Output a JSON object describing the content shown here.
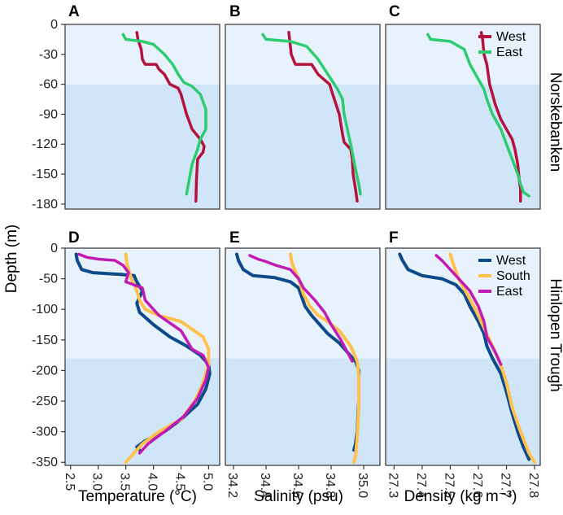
{
  "figure": {
    "ylabel": "Depth (m)",
    "xlabels": [
      "Temperature (°C)",
      "Salinity (psu)",
      "Density (kg m⁻³)"
    ],
    "row_labels": [
      "Norskebanken",
      "Hinlopen Trough"
    ],
    "panel_letters": [
      "A",
      "B",
      "C",
      "D",
      "E",
      "F"
    ],
    "colors": {
      "plot_bg_light": "#e8f2fc",
      "plot_bg_dark": "#d0e6f8",
      "West_top": "#b5123e",
      "East_top": "#2ecc71",
      "West_bottom": "#0d4a8a",
      "South_bottom": "#ffc04d",
      "East_bottom": "#c21bb5"
    }
  },
  "chart_data": [
    {
      "panel": "A",
      "type": "line",
      "xlabel": "",
      "ylabel": "Depth (m)",
      "xlim": [
        2.4,
        5.2
      ],
      "ylim": [
        -185,
        0
      ],
      "shade_below": -60,
      "yticks": [
        0,
        -30,
        -60,
        -90,
        -120,
        -150,
        -180
      ],
      "yticklabels": [
        "0",
        "-30",
        "-60",
        "-90",
        "-120",
        "-150",
        "-180"
      ],
      "xticks": [],
      "xticklabels": [],
      "legend": null,
      "series": [
        {
          "name": "West",
          "color": "#b5123e",
          "width": 3.5,
          "x": [
            3.7,
            3.72,
            3.78,
            3.8,
            3.85,
            4.05,
            4.1,
            4.2,
            4.25,
            4.3,
            4.45,
            4.5,
            4.55,
            4.6,
            4.7,
            4.85,
            4.92,
            4.9,
            4.8,
            4.78,
            4.77
          ],
          "y": [
            -8,
            -15,
            -25,
            -35,
            -40,
            -40,
            -45,
            -50,
            -55,
            -60,
            -64,
            -70,
            -80,
            -90,
            -105,
            -115,
            -122,
            -128,
            -135,
            -155,
            -177
          ]
        },
        {
          "name": "East",
          "color": "#2ecc71",
          "width": 3.5,
          "x": [
            3.45,
            3.5,
            3.8,
            4.0,
            4.2,
            4.35,
            4.45,
            4.55,
            4.7,
            4.85,
            4.95,
            4.95,
            4.85,
            4.8,
            4.7,
            4.65,
            4.6
          ],
          "y": [
            -10,
            -15,
            -17,
            -20,
            -30,
            -40,
            -50,
            -58,
            -62,
            -70,
            -85,
            -105,
            -115,
            -125,
            -140,
            -155,
            -170
          ]
        }
      ]
    },
    {
      "panel": "B",
      "type": "line",
      "xlabel": "",
      "ylabel": "",
      "xlim": [
        34.15,
        35.1
      ],
      "ylim": [
        -185,
        0
      ],
      "shade_below": -60,
      "yticks": [],
      "yticklabels": [],
      "xticks": [],
      "xticklabels": [],
      "legend": null,
      "series": [
        {
          "name": "West",
          "color": "#b5123e",
          "width": 3.5,
          "x": [
            34.54,
            34.545,
            34.555,
            34.58,
            34.68,
            34.72,
            34.79,
            34.81,
            34.83,
            34.85,
            34.86,
            34.87,
            34.88,
            34.92,
            34.93,
            34.935,
            34.95,
            34.96
          ],
          "y": [
            -8,
            -15,
            -30,
            -40,
            -40,
            -50,
            -60,
            -70,
            -80,
            -90,
            -100,
            -110,
            -118,
            -125,
            -135,
            -150,
            -165,
            -177
          ]
        },
        {
          "name": "East",
          "color": "#2ecc71",
          "width": 3.5,
          "x": [
            34.38,
            34.4,
            34.55,
            34.65,
            34.72,
            34.8,
            34.84,
            34.87,
            34.88,
            34.9,
            34.92,
            34.95,
            34.97,
            34.98
          ],
          "y": [
            -10,
            -15,
            -17,
            -22,
            -35,
            -55,
            -65,
            -75,
            -90,
            -105,
            -120,
            -145,
            -160,
            -170
          ]
        }
      ]
    },
    {
      "panel": "C",
      "type": "line",
      "xlabel": "",
      "ylabel": "",
      "xlim": [
        27.27,
        27.82
      ],
      "ylim": [
        -185,
        0
      ],
      "shade_below": -60,
      "yticks": [],
      "yticklabels": [],
      "xticks": [],
      "xticklabels": [],
      "legend": {
        "position": "top-right",
        "entries": [
          "West",
          "East"
        ]
      },
      "series": [
        {
          "name": "West",
          "color": "#b5123e",
          "width": 3.5,
          "x": [
            27.61,
            27.615,
            27.62,
            27.63,
            27.635,
            27.64,
            27.65,
            27.66,
            27.68,
            27.7,
            27.72,
            27.73,
            27.74,
            27.745,
            27.75,
            27.75
          ],
          "y": [
            -8,
            -15,
            -30,
            -40,
            -50,
            -60,
            -70,
            -80,
            -95,
            -105,
            -115,
            -125,
            -140,
            -155,
            -165,
            -177
          ]
        },
        {
          "name": "East",
          "color": "#2ecc71",
          "width": 3.5,
          "x": [
            27.42,
            27.43,
            27.5,
            27.55,
            27.57,
            27.6,
            27.62,
            27.63,
            27.65,
            27.68,
            27.7,
            27.72,
            27.74,
            27.75,
            27.76,
            27.78
          ],
          "y": [
            -10,
            -15,
            -17,
            -25,
            -40,
            -55,
            -65,
            -75,
            -90,
            -105,
            -120,
            -135,
            -150,
            -160,
            -168,
            -172
          ]
        }
      ]
    },
    {
      "panel": "D",
      "type": "line",
      "xlabel": "Temperature (°C)",
      "ylabel": "Depth (m)",
      "xlim": [
        2.4,
        5.2
      ],
      "ylim": [
        -355,
        0
      ],
      "shade_below": -180,
      "yticks": [
        0,
        -50,
        -100,
        -150,
        -200,
        -250,
        -300,
        -350
      ],
      "yticklabels": [
        "0",
        "-50",
        "-100",
        "-150",
        "-200",
        "-250",
        "-300",
        "-350"
      ],
      "xticks": [
        2.5,
        3.0,
        3.5,
        4.0,
        4.5,
        5.0
      ],
      "xticklabels": [
        "2.5",
        "3.0",
        "3.5",
        "4.0",
        "4.5",
        "5.0"
      ],
      "legend": null,
      "series": [
        {
          "name": "West",
          "color": "#0d4a8a",
          "width": 4,
          "x": [
            2.6,
            2.62,
            2.7,
            2.9,
            3.4,
            3.65,
            3.7,
            3.8,
            3.7,
            3.75,
            4.0,
            4.3,
            4.6,
            4.85,
            5.0,
            5.02,
            4.95,
            4.8,
            4.5,
            4.2,
            3.85,
            3.7,
            3.75
          ],
          "y": [
            -10,
            -20,
            -35,
            -40,
            -43,
            -45,
            -55,
            -70,
            -90,
            -105,
            -125,
            -145,
            -160,
            -175,
            -190,
            -205,
            -230,
            -255,
            -280,
            -300,
            -315,
            -325,
            -330
          ]
        },
        {
          "name": "South",
          "color": "#ffc04d",
          "width": 4,
          "x": [
            3.5,
            3.52,
            3.6,
            3.7,
            3.75,
            3.85,
            4.1,
            4.5,
            4.9,
            5.0,
            5.0,
            4.9,
            4.75,
            4.5,
            4.1,
            3.8,
            3.6,
            3.5
          ],
          "y": [
            -10,
            -25,
            -50,
            -70,
            -85,
            -100,
            -110,
            -120,
            -145,
            -165,
            -190,
            -220,
            -250,
            -280,
            -300,
            -320,
            -340,
            -350
          ]
        },
        {
          "name": "East",
          "color": "#c21bb5",
          "width": 3.5,
          "x": [
            2.65,
            2.8,
            3.0,
            3.3,
            3.45,
            3.55,
            3.5,
            3.8,
            3.85,
            4.1,
            4.5,
            4.6,
            4.7,
            4.9,
            5.0,
            4.95,
            4.8,
            4.55,
            4.2,
            3.9,
            3.75
          ],
          "y": [
            -10,
            -15,
            -18,
            -20,
            -28,
            -40,
            -55,
            -65,
            -85,
            -110,
            -135,
            -150,
            -165,
            -175,
            -195,
            -215,
            -245,
            -275,
            -300,
            -320,
            -335
          ]
        }
      ]
    },
    {
      "panel": "E",
      "type": "line",
      "xlabel": "Salinity (psu)",
      "ylabel": "",
      "xlim": [
        34.15,
        35.1
      ],
      "ylim": [
        -355,
        0
      ],
      "shade_below": -180,
      "yticks": [],
      "yticklabels": [],
      "xticks": [
        34.2,
        34.4,
        34.6,
        34.8,
        35.0
      ],
      "xticklabels": [
        "34.2",
        "34.4",
        "34.6",
        "34.8",
        "35.0"
      ],
      "legend": null,
      "series": [
        {
          "name": "West",
          "color": "#0d4a8a",
          "width": 4,
          "x": [
            34.22,
            34.23,
            34.26,
            34.32,
            34.45,
            34.55,
            34.6,
            34.62,
            34.64,
            34.68,
            34.73,
            34.78,
            34.85,
            34.9,
            34.95,
            34.97,
            34.97,
            34.96,
            34.95,
            34.94
          ],
          "y": [
            -10,
            -20,
            -35,
            -45,
            -48,
            -55,
            -65,
            -80,
            -95,
            -110,
            -125,
            -140,
            -155,
            -170,
            -185,
            -200,
            -250,
            -300,
            -320,
            -330
          ]
        },
        {
          "name": "South",
          "color": "#ffc04d",
          "width": 4,
          "x": [
            34.55,
            34.56,
            34.6,
            34.63,
            34.67,
            34.72,
            34.78,
            34.85,
            34.92,
            34.96,
            34.97,
            34.97,
            34.96,
            34.95,
            34.94
          ],
          "y": [
            -10,
            -25,
            -50,
            -75,
            -95,
            -110,
            -120,
            -135,
            -160,
            -185,
            -210,
            -260,
            -310,
            -340,
            -350
          ]
        },
        {
          "name": "East",
          "color": "#c21bb5",
          "width": 3.5,
          "x": [
            34.3,
            34.35,
            34.4,
            34.46,
            34.55,
            34.6,
            34.63,
            34.7,
            34.76,
            34.8,
            34.86,
            34.9,
            34.93
          ],
          "y": [
            -12,
            -18,
            -22,
            -28,
            -35,
            -50,
            -65,
            -85,
            -105,
            -125,
            -150,
            -170,
            -185
          ]
        }
      ]
    },
    {
      "panel": "F",
      "type": "line",
      "xlabel": "Density (kg m⁻³)",
      "ylabel": "",
      "xlim": [
        27.27,
        27.82
      ],
      "ylim": [
        -355,
        0
      ],
      "shade_below": -180,
      "yticks": [],
      "yticklabels": [],
      "xticks": [
        27.3,
        27.4,
        27.5,
        27.6,
        27.7,
        27.8
      ],
      "xticklabels": [
        "27.3",
        "27.4",
        "27.5",
        "27.6",
        "27.7",
        "27.8"
      ],
      "legend": {
        "position": "top-right",
        "entries": [
          "West",
          "South",
          "East"
        ]
      },
      "series": [
        {
          "name": "West",
          "color": "#0d4a8a",
          "width": 4,
          "x": [
            27.32,
            27.33,
            27.35,
            27.4,
            27.47,
            27.52,
            27.55,
            27.57,
            27.6,
            27.62,
            27.63,
            27.65,
            27.68,
            27.7,
            27.72,
            27.74,
            27.76,
            27.78
          ],
          "y": [
            -10,
            -20,
            -35,
            -45,
            -50,
            -60,
            -75,
            -95,
            -120,
            -140,
            -160,
            -180,
            -205,
            -235,
            -270,
            -300,
            -325,
            -345
          ]
        },
        {
          "name": "South",
          "color": "#ffc04d",
          "width": 4,
          "x": [
            27.5,
            27.51,
            27.53,
            27.56,
            27.59,
            27.62,
            27.65,
            27.68,
            27.7,
            27.72,
            27.75,
            27.78,
            27.8
          ],
          "y": [
            -10,
            -25,
            -50,
            -75,
            -100,
            -130,
            -160,
            -190,
            -220,
            -260,
            -300,
            -335,
            -350
          ]
        },
        {
          "name": "East",
          "color": "#c21bb5",
          "width": 3.5,
          "x": [
            27.45,
            27.47,
            27.5,
            27.53,
            27.57,
            27.6,
            27.62,
            27.63,
            27.66,
            27.68
          ],
          "y": [
            -12,
            -20,
            -35,
            -50,
            -70,
            -95,
            -120,
            -145,
            -170,
            -190
          ]
        }
      ]
    }
  ]
}
